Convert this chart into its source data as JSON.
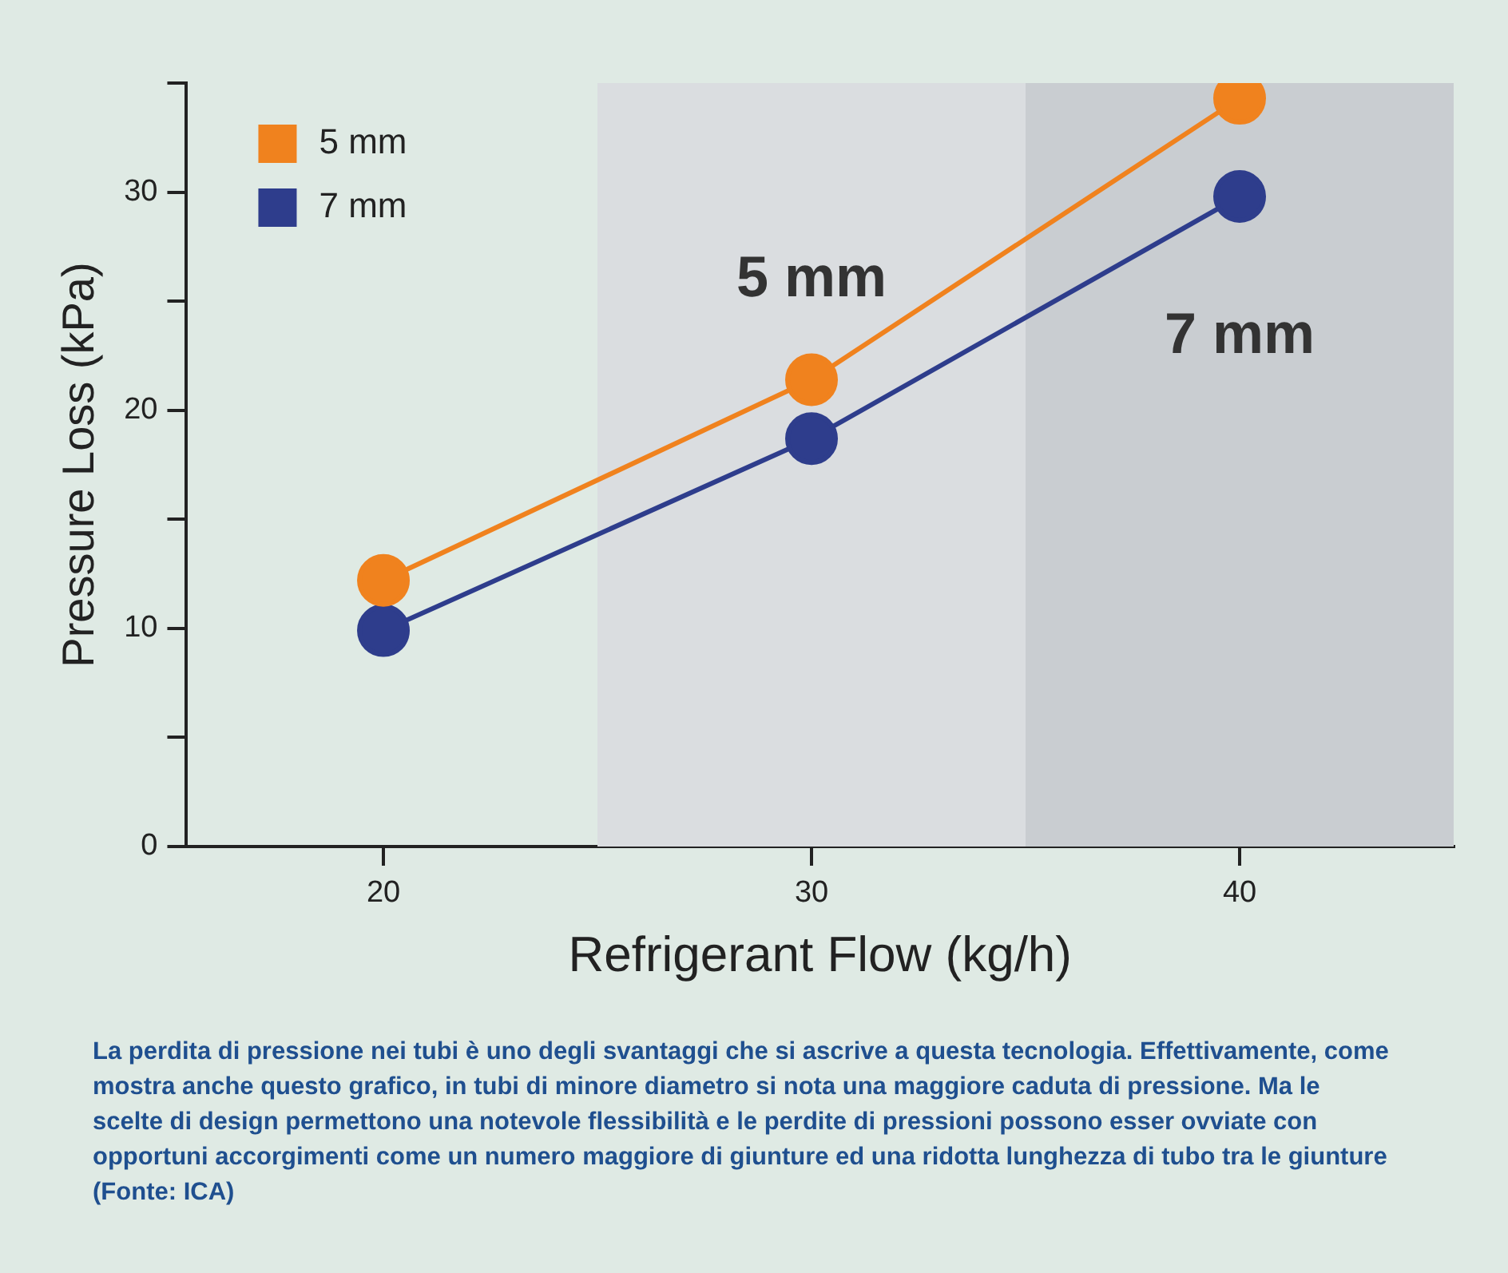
{
  "chart_data": {
    "type": "line",
    "xlabel": "Refrigerant Flow (kg/h)",
    "ylabel": "Pressure Loss (kPa)",
    "x": [
      20,
      30,
      40
    ],
    "series": [
      {
        "name": "5 mm",
        "color": "#f0821e",
        "values": [
          12.2,
          21.4,
          34.3
        ]
      },
      {
        "name": "7 mm",
        "color": "#2e3d8c",
        "values": [
          9.9,
          18.7,
          29.8
        ]
      }
    ],
    "xlim": [
      15.4,
      45
    ],
    "xticks": [
      20,
      30,
      40
    ],
    "ylim": [
      0,
      35
    ],
    "yticks": [
      0,
      {
        "value": 5,
        "label": null
      },
      10,
      {
        "value": 15,
        "label": null
      },
      20,
      {
        "value": 25,
        "label": null
      },
      30,
      {
        "value": 35,
        "label": null
      }
    ],
    "bands": [
      {
        "axis": "x",
        "from": 25,
        "to": 35,
        "color": "#dadde0"
      },
      {
        "axis": "x",
        "from": 35,
        "to": 45,
        "color": "#c9cdd1"
      }
    ],
    "marker": "circle",
    "legend": "top left",
    "grid": false,
    "annotations": [
      "La perdita di pressione nei tubi è uno degli svantaggi che si ascrive  a questa tecnologia. Effettivamente, come mostra anche questo grafico, in tubi di minore diametro si nota una maggiore caduta di pressione. Ma le scelte di design permettono una notevole flessibilità e le perdite di pressioni possono esser ovviate con opportuni accorgimenti come un numero maggiore di giunture ed una ridotta lunghezza di tubo tra le giunture (Fonte: ICA)"
    ]
  }
}
